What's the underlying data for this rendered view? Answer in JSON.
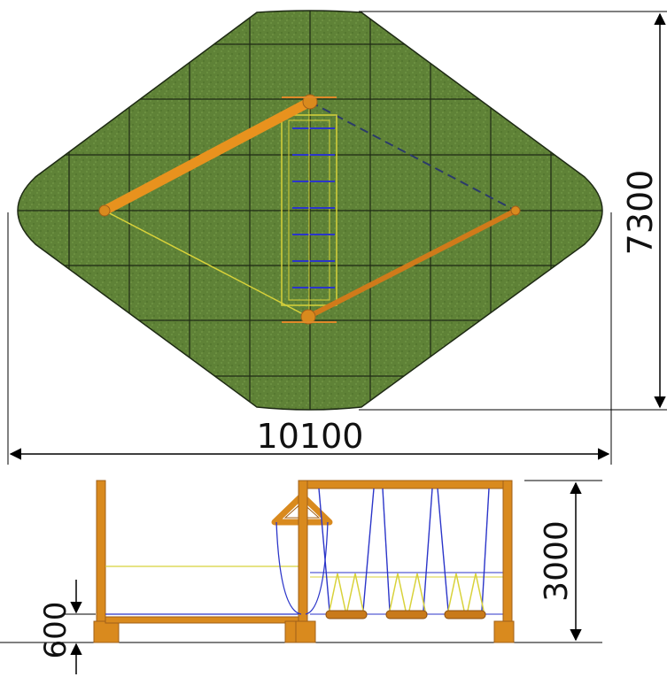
{
  "dimensions": {
    "width_label": "10100",
    "depth_label": "7300",
    "height_label": "3000",
    "base_height_label": "600"
  },
  "colors": {
    "surface_green": "#5f8237",
    "grid_line": "#1e2a14",
    "timber_orange": "#d98a1e",
    "timber_dark": "#a0601a",
    "rope_blue": "#2b35c9",
    "guide_yellow": "#d8d23a",
    "dimension_line": "#000000"
  }
}
